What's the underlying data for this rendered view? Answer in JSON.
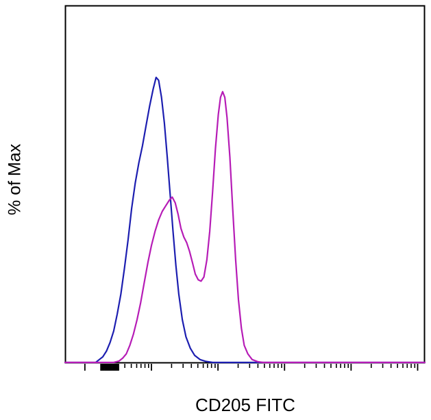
{
  "chart_data": {
    "type": "line",
    "subtype": "flow-cytometry-histogram",
    "title": "",
    "xlabel": "CD205 FITC",
    "ylabel": "% of Max",
    "x_scale": "log",
    "grid": false,
    "legend": "none",
    "background_color": "#ffffff",
    "frame_color": "#000000",
    "ylim_percent": [
      0,
      100
    ],
    "series": [
      {
        "name": "blue-curve",
        "color": "#1c1eb0",
        "points": [
          [
            0.0,
            0
          ],
          [
            0.085,
            0
          ],
          [
            0.095,
            1
          ],
          [
            0.105,
            2
          ],
          [
            0.115,
            4
          ],
          [
            0.125,
            7
          ],
          [
            0.135,
            11
          ],
          [
            0.145,
            17
          ],
          [
            0.155,
            24
          ],
          [
            0.165,
            33
          ],
          [
            0.175,
            43
          ],
          [
            0.185,
            54
          ],
          [
            0.195,
            63
          ],
          [
            0.205,
            70
          ],
          [
            0.215,
            76
          ],
          [
            0.225,
            83
          ],
          [
            0.235,
            90
          ],
          [
            0.245,
            96
          ],
          [
            0.253,
            100
          ],
          [
            0.26,
            99
          ],
          [
            0.268,
            93
          ],
          [
            0.276,
            84
          ],
          [
            0.284,
            72
          ],
          [
            0.292,
            59
          ],
          [
            0.3,
            46
          ],
          [
            0.308,
            34
          ],
          [
            0.316,
            24
          ],
          [
            0.326,
            15
          ],
          [
            0.336,
            9
          ],
          [
            0.348,
            5
          ],
          [
            0.36,
            2.5
          ],
          [
            0.375,
            1
          ],
          [
            0.39,
            0.4
          ],
          [
            0.41,
            0
          ],
          [
            1.0,
            0
          ]
        ]
      },
      {
        "name": "magenta-curve",
        "color": "#b61cb6",
        "points": [
          [
            0.0,
            0
          ],
          [
            0.135,
            0
          ],
          [
            0.15,
            0.5
          ],
          [
            0.16,
            1.5
          ],
          [
            0.17,
            3
          ],
          [
            0.18,
            6
          ],
          [
            0.19,
            10
          ],
          [
            0.2,
            15
          ],
          [
            0.21,
            21
          ],
          [
            0.22,
            28
          ],
          [
            0.23,
            35
          ],
          [
            0.24,
            41
          ],
          [
            0.25,
            46
          ],
          [
            0.26,
            50
          ],
          [
            0.27,
            53
          ],
          [
            0.28,
            55
          ],
          [
            0.29,
            57
          ],
          [
            0.298,
            58
          ],
          [
            0.306,
            56
          ],
          [
            0.314,
            52
          ],
          [
            0.322,
            47
          ],
          [
            0.33,
            44
          ],
          [
            0.338,
            42
          ],
          [
            0.346,
            39
          ],
          [
            0.354,
            35
          ],
          [
            0.362,
            31
          ],
          [
            0.37,
            29
          ],
          [
            0.378,
            28.5
          ],
          [
            0.386,
            30
          ],
          [
            0.394,
            36
          ],
          [
            0.402,
            46
          ],
          [
            0.41,
            60
          ],
          [
            0.418,
            75
          ],
          [
            0.426,
            87
          ],
          [
            0.432,
            93
          ],
          [
            0.438,
            95
          ],
          [
            0.444,
            93
          ],
          [
            0.45,
            86
          ],
          [
            0.458,
            72
          ],
          [
            0.466,
            54
          ],
          [
            0.474,
            36
          ],
          [
            0.482,
            22
          ],
          [
            0.49,
            12
          ],
          [
            0.498,
            6
          ],
          [
            0.508,
            3
          ],
          [
            0.52,
            1
          ],
          [
            0.535,
            0.3
          ],
          [
            0.55,
            0
          ],
          [
            1.0,
            0
          ]
        ]
      }
    ],
    "x_axis": {
      "tick_labels": [],
      "major_ticks": [
        0.055,
        0.24,
        0.425,
        0.61,
        0.795,
        0.98
      ],
      "minor_ticks": [
        0.111,
        0.143,
        0.166,
        0.184,
        0.199,
        0.211,
        0.222,
        0.232,
        0.296,
        0.328,
        0.351,
        0.369,
        0.384,
        0.396,
        0.407,
        0.417,
        0.481,
        0.513,
        0.536,
        0.554,
        0.569,
        0.581,
        0.592,
        0.602,
        0.666,
        0.698,
        0.721,
        0.739,
        0.754,
        0.766,
        0.777,
        0.787,
        0.851,
        0.883,
        0.906,
        0.924,
        0.939,
        0.951,
        0.962,
        0.972
      ],
      "dense_tick_cluster": [
        0.1,
        0.104,
        0.108,
        0.112,
        0.116,
        0.12,
        0.124,
        0.128,
        0.132,
        0.136,
        0.14,
        0.144,
        0.148
      ]
    }
  }
}
